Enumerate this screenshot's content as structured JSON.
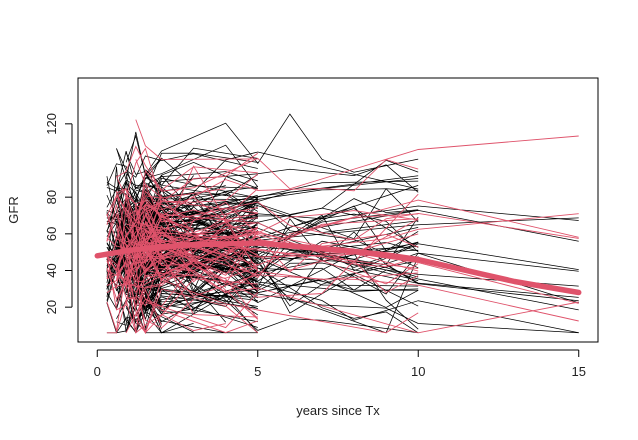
{
  "chart_data": {
    "type": "line",
    "title": "",
    "xlabel": "years since Tx",
    "ylabel": "GFR",
    "xlim": [
      -0.6,
      15.6
    ],
    "ylim": [
      1,
      145
    ],
    "xticks": [
      0,
      5,
      10,
      15
    ],
    "yticks": [
      20,
      40,
      60,
      80,
      120
    ],
    "grid": false,
    "legend": "none",
    "colors": {
      "individual": "#000000",
      "individual_highlight": "#DF536B",
      "mean": "#DF536B",
      "frame": "#000000"
    },
    "individual_series": {
      "style": "spaghetti",
      "visit_times": [
        0.3,
        0.6,
        0.9,
        1.2,
        1.5,
        2,
        3,
        4,
        5,
        6,
        7,
        8,
        9,
        10,
        15
      ],
      "approx_count": 320,
      "value_range": [
        6,
        140
      ],
      "typical_range": [
        20,
        90
      ]
    },
    "series": [
      {
        "name": "",
        "x": [
          0,
          1,
          2,
          3,
          4,
          5,
          6,
          7,
          8,
          9,
          10,
          11,
          12,
          13,
          14,
          15
        ],
        "y": [
          48,
          51,
          53,
          54,
          54.5,
          55,
          53.5,
          52,
          50.5,
          48.5,
          46,
          42,
          38,
          34,
          31,
          28
        ]
      }
    ]
  }
}
